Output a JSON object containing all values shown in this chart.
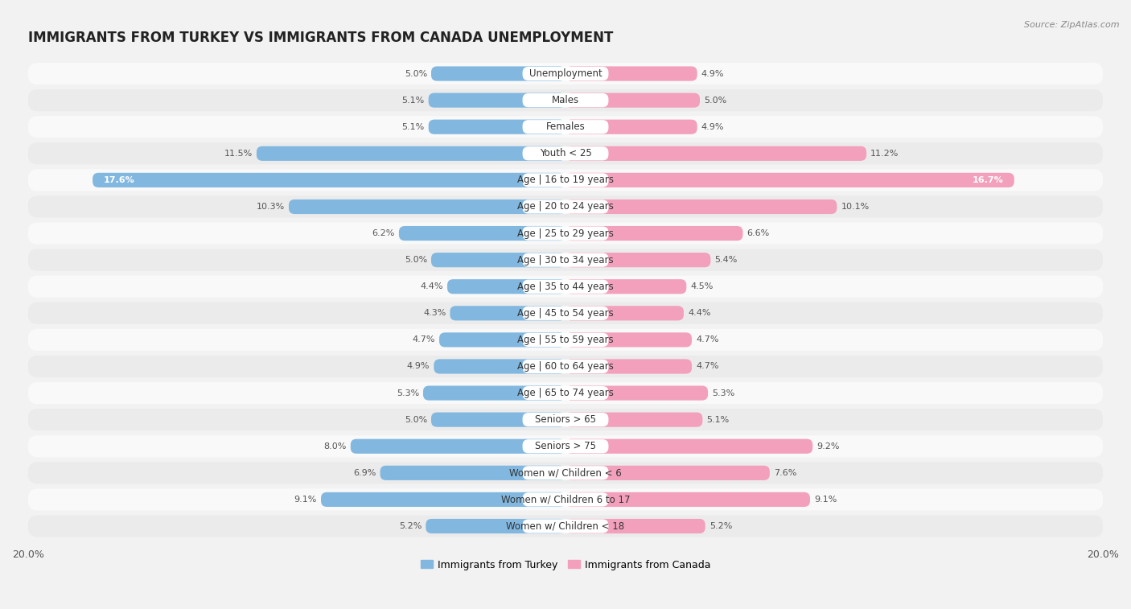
{
  "title": "IMMIGRANTS FROM TURKEY VS IMMIGRANTS FROM CANADA UNEMPLOYMENT",
  "source": "Source: ZipAtlas.com",
  "categories": [
    "Unemployment",
    "Males",
    "Females",
    "Youth < 25",
    "Age | 16 to 19 years",
    "Age | 20 to 24 years",
    "Age | 25 to 29 years",
    "Age | 30 to 34 years",
    "Age | 35 to 44 years",
    "Age | 45 to 54 years",
    "Age | 55 to 59 years",
    "Age | 60 to 64 years",
    "Age | 65 to 74 years",
    "Seniors > 65",
    "Seniors > 75",
    "Women w/ Children < 6",
    "Women w/ Children 6 to 17",
    "Women w/ Children < 18"
  ],
  "turkey_values": [
    5.0,
    5.1,
    5.1,
    11.5,
    17.6,
    10.3,
    6.2,
    5.0,
    4.4,
    4.3,
    4.7,
    4.9,
    5.3,
    5.0,
    8.0,
    6.9,
    9.1,
    5.2
  ],
  "canada_values": [
    4.9,
    5.0,
    4.9,
    11.2,
    16.7,
    10.1,
    6.6,
    5.4,
    4.5,
    4.4,
    4.7,
    4.7,
    5.3,
    5.1,
    9.2,
    7.6,
    9.1,
    5.2
  ],
  "turkey_color": "#82b8e0",
  "canada_color": "#f2a0bc",
  "turkey_label": "Immigrants from Turkey",
  "canada_label": "Immigrants from Canada",
  "bg_color": "#f2f2f2",
  "row_odd_color": "#f9f9f9",
  "row_even_color": "#ebebeb",
  "label_box_color": "#ffffff",
  "max_value": 20.0,
  "title_fontsize": 12,
  "label_fontsize": 8.5,
  "value_fontsize": 8.0,
  "legend_fontsize": 9
}
